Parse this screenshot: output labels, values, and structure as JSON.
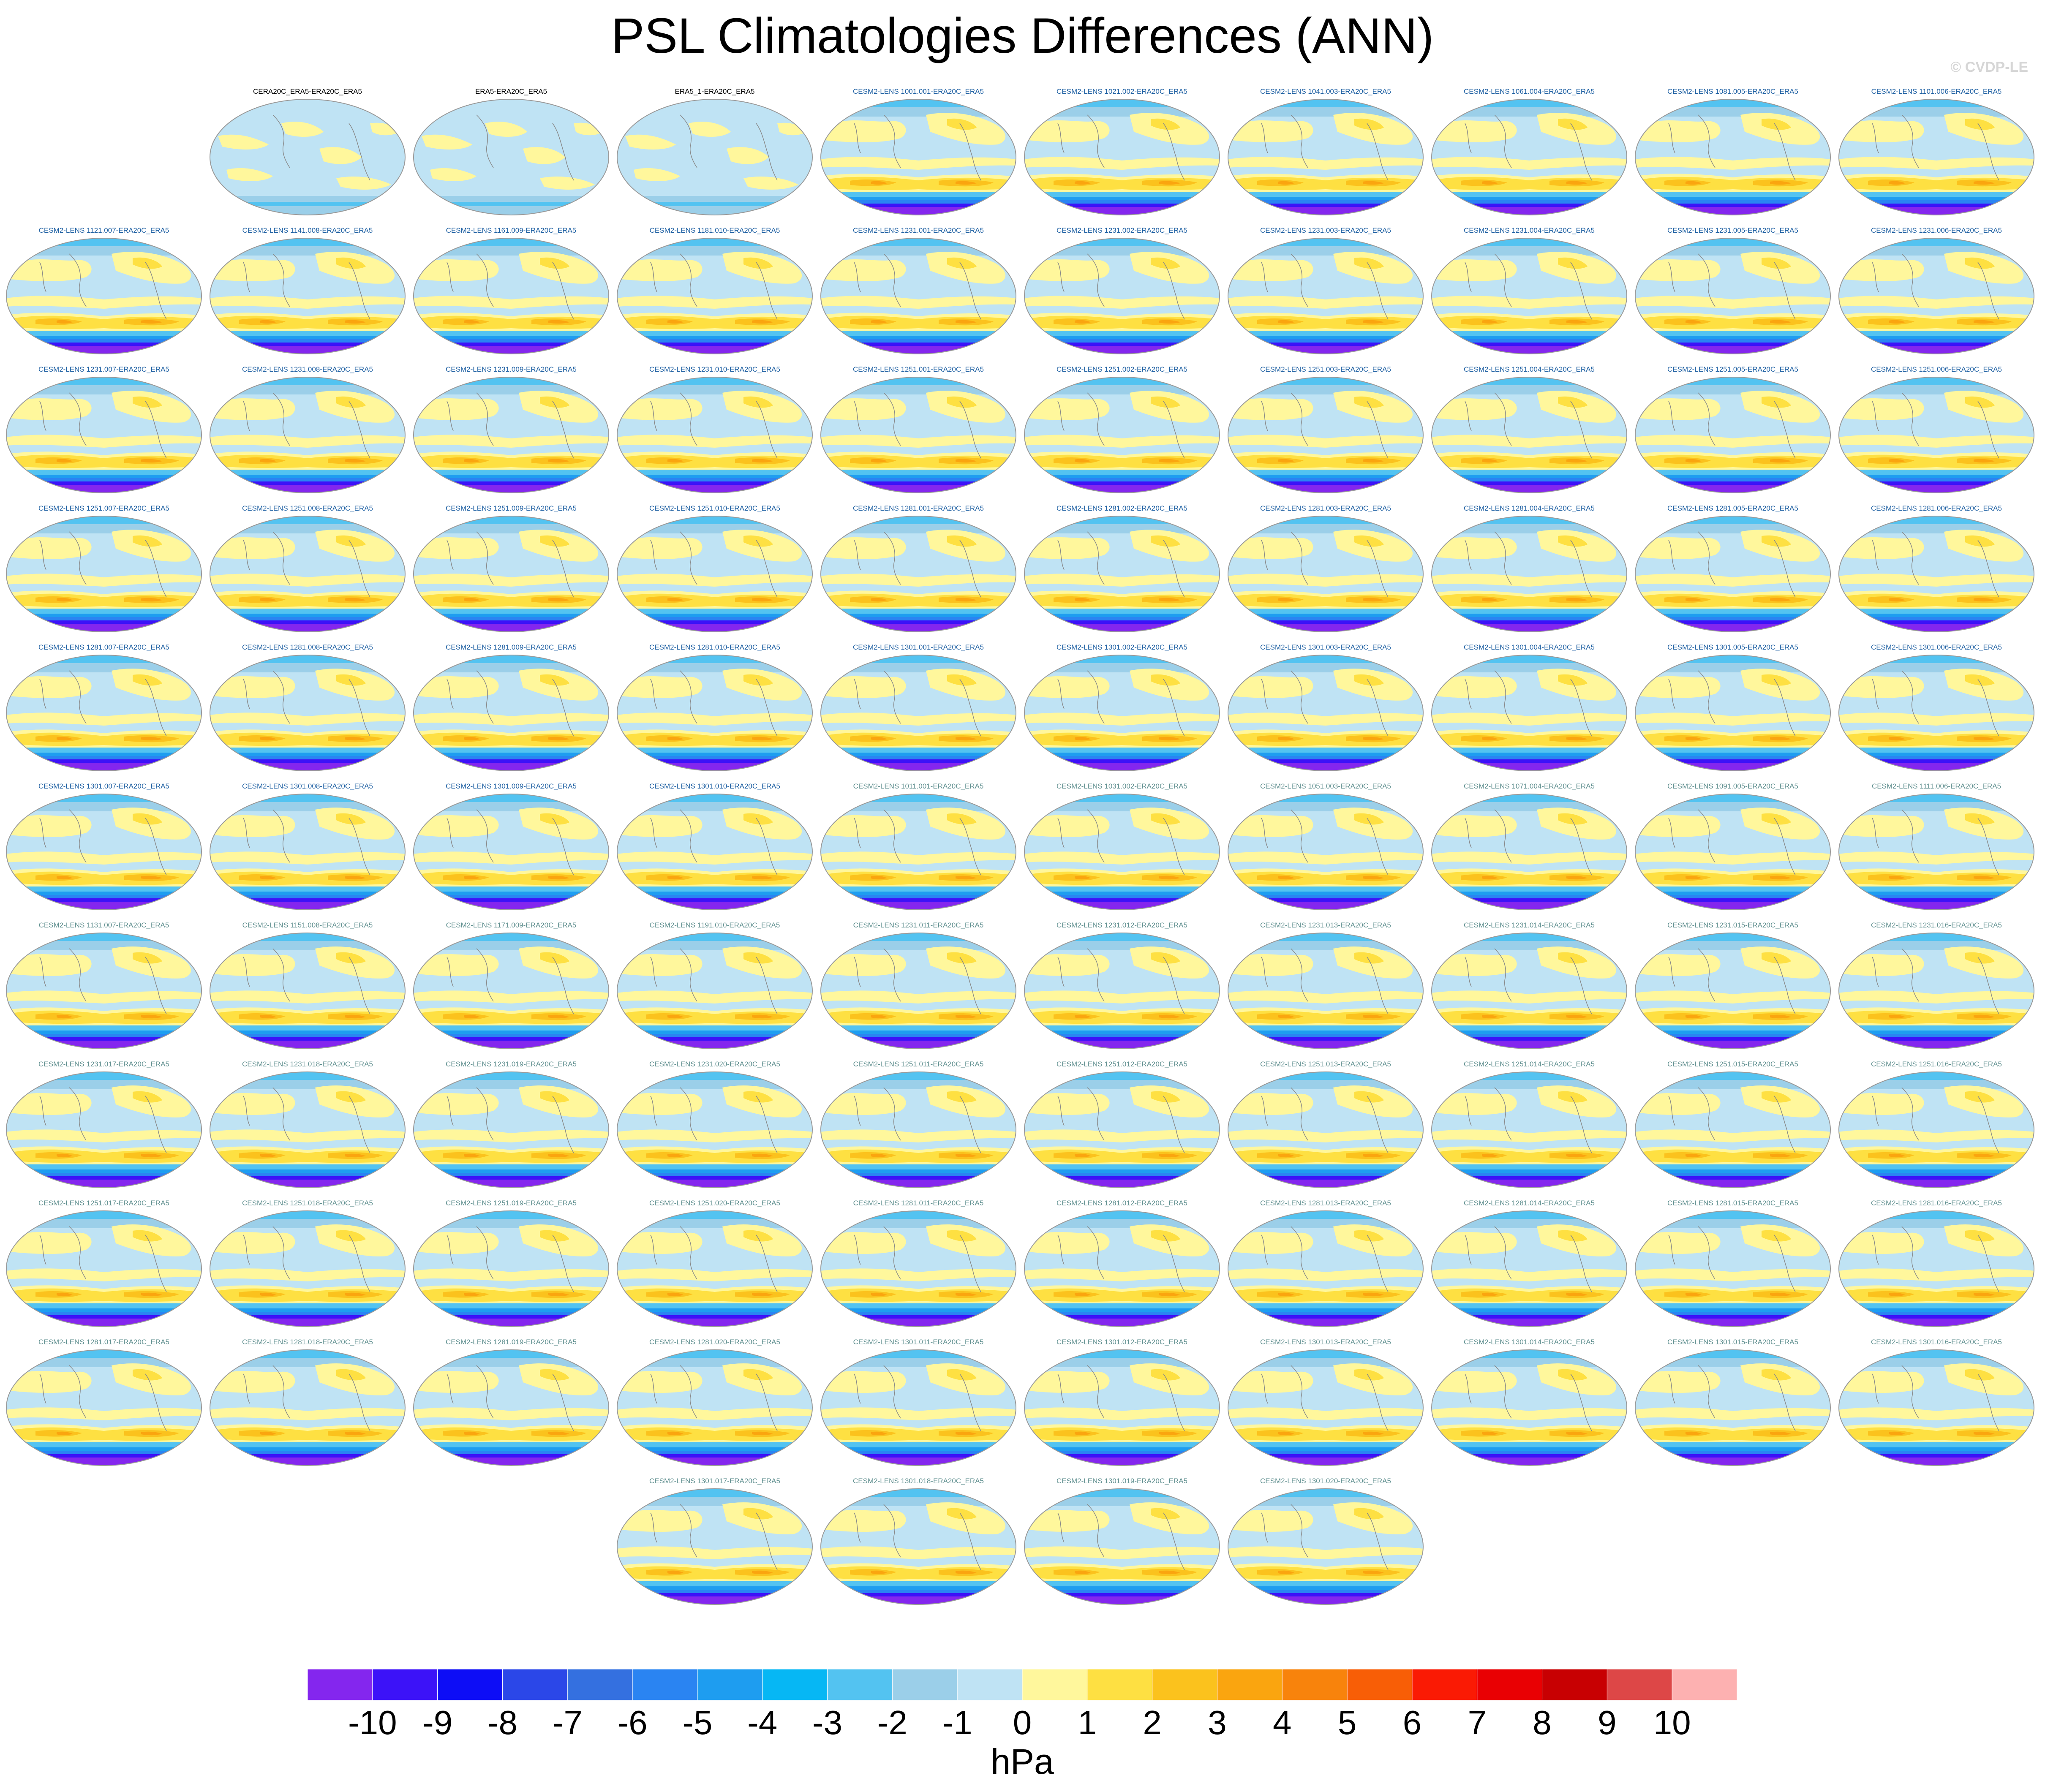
{
  "title": "PSL Climatologies Differences (ANN)",
  "watermark": "© CVDP-LE",
  "colors": {
    "scale": [
      "#8426ee",
      "#3c12f8",
      "#0d0df6",
      "#2b47e8",
      "#3470e0",
      "#2a84f2",
      "#1e9df0",
      "#06b7f4",
      "#53c3f1",
      "#9bcfe9",
      "#bfe3f4",
      "#fff79c",
      "#fee042",
      "#fbc21d",
      "#faa50f",
      "#f8830c",
      "#f85e06",
      "#fa1a04",
      "#e90003",
      "#c80002",
      "#dd4747",
      "#fdb1b1"
    ],
    "title_black": "#000000",
    "title_cesm_blue": "#1d5fa2",
    "title_cesm_gray": "#5f8f8f"
  },
  "chart_data": {
    "type": "heatmap",
    "title": "PSL Climatologies Differences (ANN)",
    "colorbar": {
      "ticks": [
        -10,
        -9,
        -8,
        -7,
        -6,
        -5,
        -4,
        -3,
        -2,
        -1,
        0,
        1,
        2,
        3,
        4,
        5,
        6,
        7,
        8,
        9,
        10
      ],
      "label": "hPa",
      "range": [
        -11,
        11
      ]
    },
    "panels": [
      [
        "CERA20C_ERA5-ERA20C_ERA5",
        "ERA5-ERA20C_ERA5",
        "ERA5_1-ERA20C_ERA5",
        "CESM2-LENS 1001.001-ERA20C_ERA5",
        "CESM2-LENS 1021.002-ERA20C_ERA5",
        "CESM2-LENS 1041.003-ERA20C_ERA5",
        "CESM2-LENS 1061.004-ERA20C_ERA5",
        "CESM2-LENS 1081.005-ERA20C_ERA5",
        "CESM2-LENS 1101.006-ERA20C_ERA5"
      ],
      [
        "CESM2-LENS 1121.007-ERA20C_ERA5",
        "CESM2-LENS 1141.008-ERA20C_ERA5",
        "CESM2-LENS 1161.009-ERA20C_ERA5",
        "CESM2-LENS 1181.010-ERA20C_ERA5",
        "CESM2-LENS 1231.001-ERA20C_ERA5",
        "CESM2-LENS 1231.002-ERA20C_ERA5",
        "CESM2-LENS 1231.003-ERA20C_ERA5",
        "CESM2-LENS 1231.004-ERA20C_ERA5",
        "CESM2-LENS 1231.005-ERA20C_ERA5",
        "CESM2-LENS 1231.006-ERA20C_ERA5"
      ],
      [
        "CESM2-LENS 1231.007-ERA20C_ERA5",
        "CESM2-LENS 1231.008-ERA20C_ERA5",
        "CESM2-LENS 1231.009-ERA20C_ERA5",
        "CESM2-LENS 1231.010-ERA20C_ERA5",
        "CESM2-LENS 1251.001-ERA20C_ERA5",
        "CESM2-LENS 1251.002-ERA20C_ERA5",
        "CESM2-LENS 1251.003-ERA20C_ERA5",
        "CESM2-LENS 1251.004-ERA20C_ERA5",
        "CESM2-LENS 1251.005-ERA20C_ERA5",
        "CESM2-LENS 1251.006-ERA20C_ERA5"
      ],
      [
        "CESM2-LENS 1251.007-ERA20C_ERA5",
        "CESM2-LENS 1251.008-ERA20C_ERA5",
        "CESM2-LENS 1251.009-ERA20C_ERA5",
        "CESM2-LENS 1251.010-ERA20C_ERA5",
        "CESM2-LENS 1281.001-ERA20C_ERA5",
        "CESM2-LENS 1281.002-ERA20C_ERA5",
        "CESM2-LENS 1281.003-ERA20C_ERA5",
        "CESM2-LENS 1281.004-ERA20C_ERA5",
        "CESM2-LENS 1281.005-ERA20C_ERA5",
        "CESM2-LENS 1281.006-ERA20C_ERA5"
      ],
      [
        "CESM2-LENS 1281.007-ERA20C_ERA5",
        "CESM2-LENS 1281.008-ERA20C_ERA5",
        "CESM2-LENS 1281.009-ERA20C_ERA5",
        "CESM2-LENS 1281.010-ERA20C_ERA5",
        "CESM2-LENS 1301.001-ERA20C_ERA5",
        "CESM2-LENS 1301.002-ERA20C_ERA5",
        "CESM2-LENS 1301.003-ERA20C_ERA5",
        "CESM2-LENS 1301.004-ERA20C_ERA5",
        "CESM2-LENS 1301.005-ERA20C_ERA5",
        "CESM2-LENS 1301.006-ERA20C_ERA5"
      ],
      [
        "CESM2-LENS 1301.007-ERA20C_ERA5",
        "CESM2-LENS 1301.008-ERA20C_ERA5",
        "CESM2-LENS 1301.009-ERA20C_ERA5",
        "CESM2-LENS 1301.010-ERA20C_ERA5",
        "CESM2-LENS 1011.001-ERA20C_ERA5",
        "CESM2-LENS 1031.002-ERA20C_ERA5",
        "CESM2-LENS 1051.003-ERA20C_ERA5",
        "CESM2-LENS 1071.004-ERA20C_ERA5",
        "CESM2-LENS 1091.005-ERA20C_ERA5",
        "CESM2-LENS 1111.006-ERA20C_ERA5"
      ],
      [
        "CESM2-LENS 1131.007-ERA20C_ERA5",
        "CESM2-LENS 1151.008-ERA20C_ERA5",
        "CESM2-LENS 1171.009-ERA20C_ERA5",
        "CESM2-LENS 1191.010-ERA20C_ERA5",
        "CESM2-LENS 1231.011-ERA20C_ERA5",
        "CESM2-LENS 1231.012-ERA20C_ERA5",
        "CESM2-LENS 1231.013-ERA20C_ERA5",
        "CESM2-LENS 1231.014-ERA20C_ERA5",
        "CESM2-LENS 1231.015-ERA20C_ERA5",
        "CESM2-LENS 1231.016-ERA20C_ERA5"
      ],
      [
        "CESM2-LENS 1231.017-ERA20C_ERA5",
        "CESM2-LENS 1231.018-ERA20C_ERA5",
        "CESM2-LENS 1231.019-ERA20C_ERA5",
        "CESM2-LENS 1231.020-ERA20C_ERA5",
        "CESM2-LENS 1251.011-ERA20C_ERA5",
        "CESM2-LENS 1251.012-ERA20C_ERA5",
        "CESM2-LENS 1251.013-ERA20C_ERA5",
        "CESM2-LENS 1251.014-ERA20C_ERA5",
        "CESM2-LENS 1251.015-ERA20C_ERA5",
        "CESM2-LENS 1251.016-ERA20C_ERA5"
      ],
      [
        "CESM2-LENS 1251.017-ERA20C_ERA5",
        "CESM2-LENS 1251.018-ERA20C_ERA5",
        "CESM2-LENS 1251.019-ERA20C_ERA5",
        "CESM2-LENS 1251.020-ERA20C_ERA5",
        "CESM2-LENS 1281.011-ERA20C_ERA5",
        "CESM2-LENS 1281.012-ERA20C_ERA5",
        "CESM2-LENS 1281.013-ERA20C_ERA5",
        "CESM2-LENS 1281.014-ERA20C_ERA5",
        "CESM2-LENS 1281.015-ERA20C_ERA5",
        "CESM2-LENS 1281.016-ERA20C_ERA5"
      ],
      [
        "CESM2-LENS 1281.017-ERA20C_ERA5",
        "CESM2-LENS 1281.018-ERA20C_ERA5",
        "CESM2-LENS 1281.019-ERA20C_ERA5",
        "CESM2-LENS 1281.020-ERA20C_ERA5",
        "CESM2-LENS 1301.011-ERA20C_ERA5",
        "CESM2-LENS 1301.012-ERA20C_ERA5",
        "CESM2-LENS 1301.013-ERA20C_ERA5",
        "CESM2-LENS 1301.014-ERA20C_ERA5",
        "CESM2-LENS 1301.015-ERA20C_ERA5",
        "CESM2-LENS 1301.016-ERA20C_ERA5"
      ],
      [
        "CESM2-LENS 1301.017-ERA20C_ERA5",
        "CESM2-LENS 1301.018-ERA20C_ERA5",
        "CESM2-LENS 1301.019-ERA20C_ERA5",
        "CESM2-LENS 1301.020-ERA20C_ERA5"
      ]
    ]
  }
}
